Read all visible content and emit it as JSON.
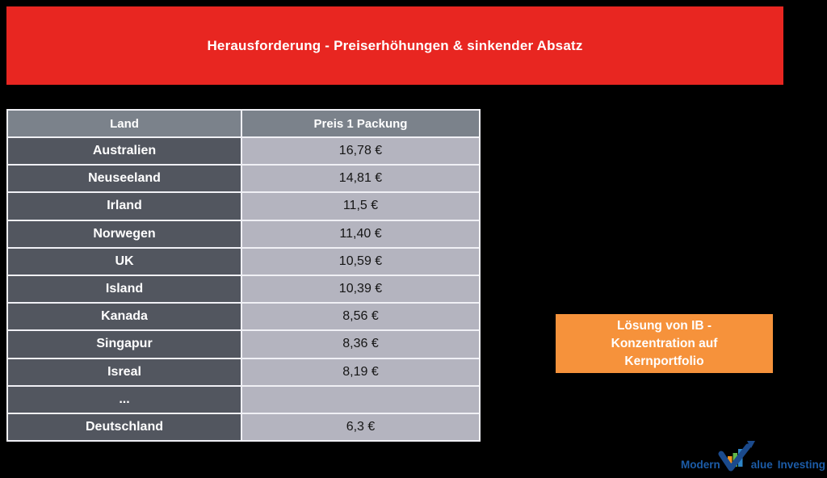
{
  "banner": {
    "title": "Herausforderung - Preiserhöhungen & sinkender Absatz",
    "bg_color": "#e82621"
  },
  "table": {
    "headers": [
      "Land",
      "Preis 1 Packung"
    ],
    "rows": [
      {
        "land": "Australien",
        "preis": "16,78 €"
      },
      {
        "land": "Neuseeland",
        "preis": "14,81 €"
      },
      {
        "land": "Irland",
        "preis": "11,5 €"
      },
      {
        "land": "Norwegen",
        "preis": "11,40 €"
      },
      {
        "land": "UK",
        "preis": "10,59 €"
      },
      {
        "land": "Island",
        "preis": "10,39 €"
      },
      {
        "land": "Kanada",
        "preis": "8,56 €"
      },
      {
        "land": "Singapur",
        "preis": "8,36 €"
      },
      {
        "land": "Isreal",
        "preis": "8,19 €"
      },
      {
        "land": "...",
        "preis": ""
      },
      {
        "land": "Deutschland",
        "preis": "6,3 €"
      }
    ]
  },
  "solution_box": {
    "lines": [
      "Lösung von IB -",
      "Konzentration auf",
      "Kernportfolio"
    ],
    "bg_color": "#f6923b"
  },
  "logo": {
    "modern": "Modern",
    "value_rest": "alue",
    "investing": "Investing",
    "icon": "checkmark-growth-arrow-icon",
    "text_color": "#1c5ca8"
  },
  "colors": {
    "background": "#000000",
    "table_header_bg": "#7b828b",
    "table_land_bg": "#52565f",
    "table_preis_bg": "#b4b4bf",
    "grid_line": "#f0f0f5"
  }
}
